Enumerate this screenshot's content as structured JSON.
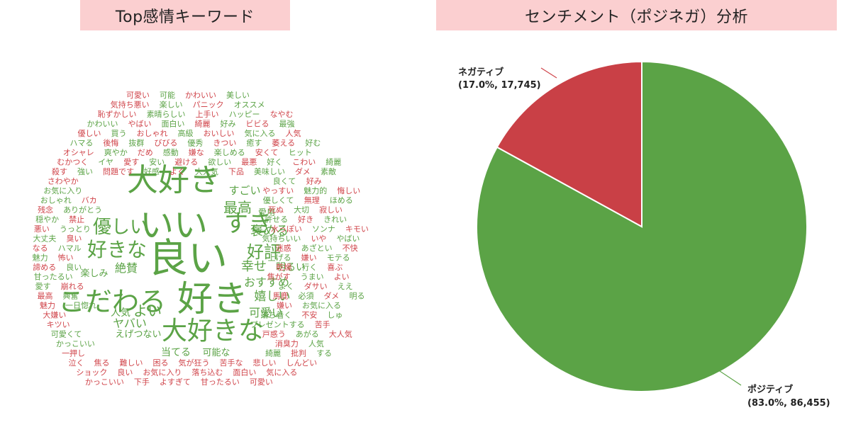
{
  "titles": {
    "wordcloud": "Top感情キーワード",
    "sentiment": "センチメント（ポジネガ）分析"
  },
  "colors": {
    "positive": "#5ba346",
    "negative": "#d0454b",
    "title_bg": "#fbcfd0"
  },
  "chart_data": [
    {
      "type": "wordcloud",
      "title": "Top感情キーワード",
      "positive_words": [
        "良い",
        "好き",
        "大好き",
        "いい",
        "こだわる",
        "大好きな",
        "すき",
        "好きな",
        "優しい",
        "好評",
        "最高",
        "褒める",
        "幸せ",
        "おすすめ",
        "嬉しい",
        "可愛い",
        "絶賛",
        "よい",
        "ヤバい",
        "人気",
        "当てる",
        "可能な",
        "明るい",
        "楽しみ",
        "えげつない",
        "すごい",
        "愛用",
        "可能",
        "美しい",
        "楽しい",
        "オススメ",
        "素晴らしい",
        "ハッピー",
        "かわいい",
        "面白い",
        "好み",
        "最強",
        "買う",
        "高級",
        "気に入る",
        "ハマる",
        "抜群",
        "優秀",
        "癒す",
        "好む",
        "爽やか",
        "感動",
        "楽しめる",
        "ヒット",
        "イヤ",
        "安い",
        "欲しい",
        "好く",
        "綺麗",
        "強い",
        "好感",
        "大人気",
        "美味しい",
        "素敵",
        "良くて",
        "お気に入り",
        "魅力的",
        "おしゃれ",
        "優しくて",
        "ほめる",
        "ありがとう",
        "大切",
        "穏やか",
        "許せる",
        "きれい",
        "うっとり",
        "ソンナ",
        "大丈夫",
        "気持ちいい",
        "やばい",
        "ハマル",
        "あざとい",
        "魅力",
        "上げる",
        "モテる",
        "良い",
        "行く",
        "甘ったるい",
        "うまい",
        "愛す",
        "よく",
        "ええ",
        "興奮",
        "必須",
        "明る",
        "一日惚れ",
        "お気に入る",
        "落ち着く",
        "しゅ",
        "プレゼントする",
        "可愛くて",
        "あがる",
        "かっこいい",
        "人気",
        "綺麗",
        "する"
      ],
      "negative_words": [
        "可愛い",
        "かわいい",
        "気持ち悪い",
        "パニック",
        "恥ずかしい",
        "上手い",
        "なやむ",
        "やばい",
        "綺麗",
        "ビビる",
        "優しい",
        "おしゃれ",
        "おいしい",
        "人気",
        "後悔",
        "びびる",
        "きつい",
        "萎える",
        "オシャレ",
        "だめ",
        "嫌な",
        "安くて",
        "むかつく",
        "愛す",
        "避ける",
        "最悪",
        "こわい",
        "殺す",
        "問題です",
        "よく",
        "下品",
        "ダメ",
        "さわやか",
        "好み",
        "やっすい",
        "悔しい",
        "バカ",
        "無理",
        "残念",
        "死ぬ",
        "寂しい",
        "禁止",
        "好き",
        "悪い",
        "水っぽい",
        "キモい",
        "臭い",
        "いや",
        "なる",
        "迷惑",
        "不快",
        "怖い",
        "嫌い",
        "諦める",
        "乾燥",
        "喜ぶ",
        "焦がす",
        "よい",
        "崩れる",
        "ダサい",
        "最高",
        "馬鹿",
        "ダメ",
        "魅力",
        "嫌い",
        "大嫌い",
        "不安",
        "キツい",
        "苦手",
        "戸惑う",
        "大人気",
        "消臭力",
        "一押し",
        "批判",
        "泣く",
        "焦る",
        "難しい",
        "困る",
        "気が狂う",
        "苦手な",
        "悲しい",
        "しんどい",
        "ショック",
        "良い",
        "お気に入り",
        "落ち込む",
        "面白い",
        "気に入る",
        "かっこいい",
        "下手",
        "よすぎて",
        "甘ったるい",
        "可愛い"
      ]
    },
    {
      "type": "pie",
      "title": "センチメント（ポジネガ）分析",
      "slices": [
        {
          "label": "ポジティブ",
          "percent": 83.0,
          "value": 86455,
          "value_text": "(83.0%, 86,455)",
          "color": "#5ba346"
        },
        {
          "label": "ネガティブ",
          "percent": 17.0,
          "value": 17745,
          "value_text": "(17.0%, 17,745)",
          "color": "#c94046"
        }
      ],
      "start": "12 o'clock",
      "direction": "clockwise"
    }
  ]
}
